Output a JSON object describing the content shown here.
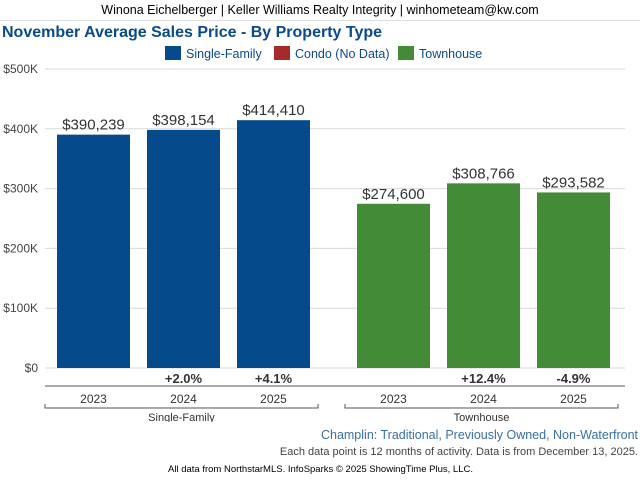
{
  "header": {
    "agent_line": "Winona Eichelberger | Keller Williams Realty Integrity | winhometeam@kw.com"
  },
  "chart_data": {
    "type": "bar",
    "title": "November Average Sales Price - By Property Type",
    "legend": [
      {
        "name": "Single-Family",
        "color": "#054b8c"
      },
      {
        "name": "Condo (No Data)",
        "color": "#a52a2a"
      },
      {
        "name": "Townhouse",
        "color": "#448b38"
      }
    ],
    "ylim": [
      0,
      500000
    ],
    "y_ticks": [
      {
        "value": 0,
        "label": "$0"
      },
      {
        "value": 100000,
        "label": "$100K"
      },
      {
        "value": 200000,
        "label": "$200K"
      },
      {
        "value": 300000,
        "label": "$300K"
      },
      {
        "value": 400000,
        "label": "$400K"
      },
      {
        "value": 500000,
        "label": "$500K"
      }
    ],
    "grid": true,
    "legend_position": "top",
    "groups": [
      {
        "name": "Single-Family",
        "color": "#054b8c",
        "categories": [
          "2023",
          "2024",
          "2025"
        ],
        "values": [
          390239,
          398154,
          414410
        ],
        "value_labels": [
          "$390,239",
          "$398,154",
          "$414,410"
        ],
        "changes": [
          "",
          "+2.0%",
          "+4.1%"
        ]
      },
      {
        "name": "Townhouse",
        "color": "#448b38",
        "categories": [
          "2023",
          "2024",
          "2025"
        ],
        "values": [
          274600,
          308766,
          293582
        ],
        "value_labels": [
          "$274,600",
          "$308,766",
          "$293,582"
        ],
        "changes": [
          "",
          "+12.4%",
          "-4.9%"
        ]
      }
    ]
  },
  "footer": {
    "location": "Champlin: Traditional, Previously Owned, Non-Waterfront",
    "activity_note": "Each data point is 12 months of activity. Data is from December 13, 2025.",
    "source": "All data from NorthstarMLS. InfoSparks © 2025 ShowingTime Plus, LLC."
  }
}
